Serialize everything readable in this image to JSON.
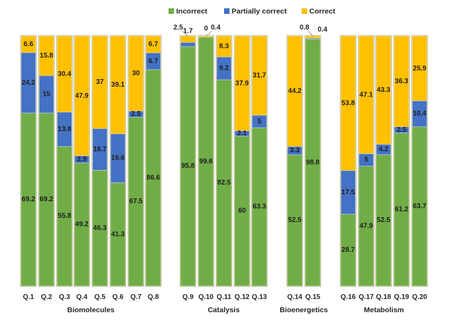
{
  "chart_data": {
    "type": "bar",
    "stacked": true,
    "normalized_to": 100,
    "ylim": [
      0,
      100
    ],
    "legend": {
      "placement": "top-center",
      "entries": [
        "Incorrect",
        "Partially correct",
        "Correct"
      ]
    },
    "colors": {
      "Incorrect": "#70ad47",
      "Partially correct": "#4472c4",
      "Correct": "#ffc000"
    },
    "categories": [
      "Q.1",
      "Q.2",
      "Q.3",
      "Q.4",
      "Q.5",
      "Q.6",
      "Q.7",
      "Q.8",
      "Q.9",
      "Q.10",
      "Q.11",
      "Q.12",
      "Q.13",
      "Q.14",
      "Q.15",
      "Q.16",
      "Q.17",
      "Q.18",
      "Q.19",
      "Q.20"
    ],
    "category_labels": [
      "Q.1",
      "Q.2",
      "Q.3",
      "Q.4",
      "Q.5",
      "Q.6",
      "Q.7",
      "Q.8",
      "Q.9",
      "Q.10",
      "Q.11",
      "Q.12",
      "Q.13",
      "Q.14",
      "Q.15",
      "Q.16",
      "Q.17",
      "Q.18",
      "Q.19",
      "Q.20"
    ],
    "series": [
      {
        "name": "Incorrect",
        "values": [
          69.2,
          69.2,
          55.8,
          49.2,
          46.3,
          41.3,
          67.5,
          86.6,
          95.8,
          99.6,
          82.5,
          60,
          63.3,
          52.5,
          98.8,
          28.7,
          47.9,
          52.5,
          61.2,
          63.7
        ],
        "labels": [
          "69.2",
          "69.2",
          "55.8",
          "49.2",
          "46.3",
          "41.3",
          "67.5",
          "86.6",
          "95.8",
          "99.6",
          "82.5",
          "60",
          "63.3",
          "52.5",
          "98.8",
          "28.7",
          "47.9",
          "52.5",
          "61.2",
          "63.7"
        ]
      },
      {
        "name": "Partially correct",
        "values": [
          24.2,
          15,
          13.8,
          2.9,
          16.7,
          19.6,
          2.5,
          6.7,
          1.7,
          0,
          9.2,
          2.1,
          5,
          3.3,
          0.4,
          17.5,
          5,
          4.2,
          2.5,
          10.4
        ],
        "labels": [
          "24.2",
          "15",
          "13.8",
          "2.9",
          "16.7",
          "19.6",
          "2.5",
          "6.7",
          "1.7",
          "0",
          "9.2",
          "2.1",
          "5",
          "3.3",
          "0.4",
          "17.5",
          "5",
          "4.2",
          "2.5",
          "10.4"
        ]
      },
      {
        "name": "Correct",
        "values": [
          6.6,
          15.8,
          30.4,
          47.9,
          37,
          39.1,
          30,
          6.7,
          2.5,
          0.4,
          8.3,
          37.9,
          31.7,
          44.2,
          0.8,
          53.8,
          47.1,
          43.3,
          36.3,
          25.9
        ],
        "labels": [
          "6.6",
          "15.8",
          "30.4",
          "47.9",
          "37",
          "39.1",
          "30",
          "6.7",
          "2.5",
          "0.4",
          "8.3",
          "37.9",
          "31.7",
          "44.2",
          "0.8",
          "53.8",
          "47.1",
          "43.3",
          "36.3",
          "25.9"
        ]
      }
    ],
    "groups": [
      {
        "name": "Biomolecules",
        "start": 0,
        "end": 7
      },
      {
        "name": "Catalysis",
        "start": 8,
        "end": 12
      },
      {
        "name": "Bioenergetics",
        "start": 13,
        "end": 14
      },
      {
        "name": "Metabolism",
        "start": 15,
        "end": 19
      }
    ]
  }
}
